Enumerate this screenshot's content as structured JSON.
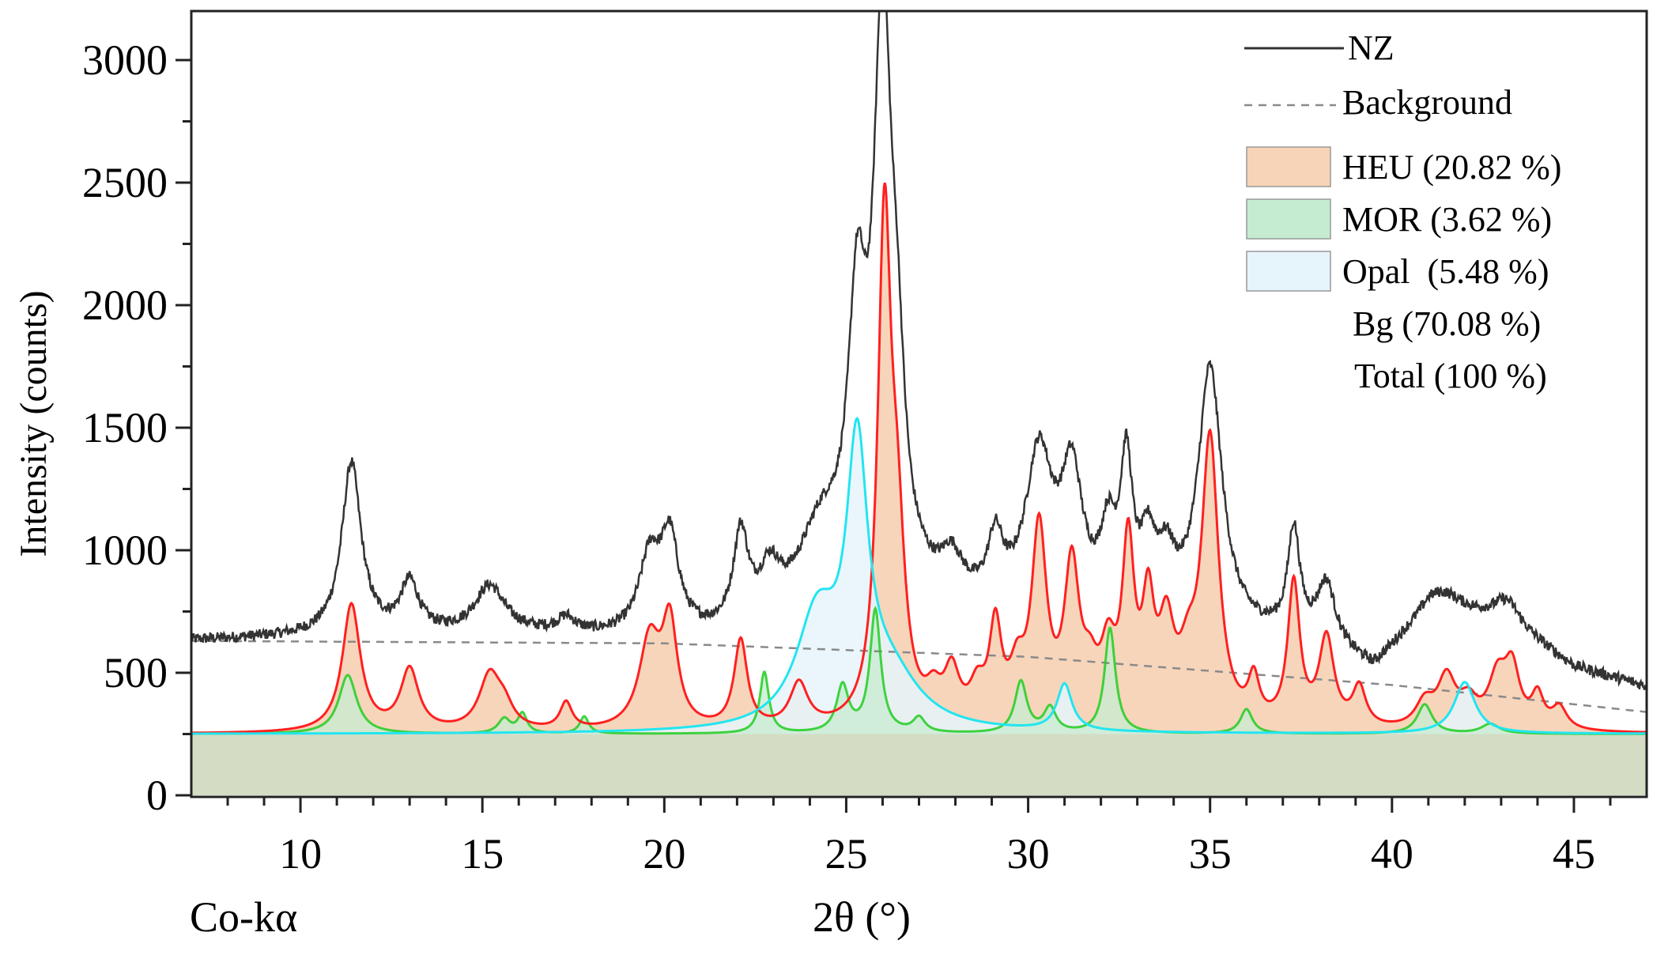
{
  "chart_data": {
    "type": "line",
    "xlabel": "2θ (°)",
    "ylabel": "Intensity (counts)",
    "radiation_label": "Co-kα",
    "xlim": [
      7,
      47
    ],
    "ylim": [
      0,
      3200
    ],
    "x_ticks": [
      10,
      15,
      20,
      25,
      30,
      35,
      40,
      45
    ],
    "x_tick_labels": [
      "10",
      "15",
      "20",
      "25",
      "30",
      "35",
      "40",
      "45"
    ],
    "y_ticks": [
      0,
      500,
      1000,
      1500,
      2000,
      2500,
      3000
    ],
    "y_tick_labels": [
      "0",
      "500",
      "1000",
      "1500",
      "2000",
      "2500",
      "3000"
    ],
    "grid": false,
    "legend_position": "top-right",
    "colors": {
      "observed": "#333333",
      "background": "#8a8a8a",
      "heu_line": "#ff2020",
      "heu_fill": "#f7d3b7",
      "mor_line": "#22cc22",
      "mor_fill": "#c5ecd0",
      "opal_line": "#22e5f0",
      "opal_fill": "#e6f4fb",
      "bg_fill": "#d4dcc4"
    },
    "legend": [
      {
        "label": "NZ",
        "kind": "solid-line"
      },
      {
        "label": "Background",
        "kind": "dashed-line"
      },
      {
        "label": "HEU (20.82 %)",
        "kind": "swatch-heu"
      },
      {
        "label": "MOR (3.62 %)",
        "kind": "swatch-mor"
      },
      {
        "label": "Opal  (5.48 %)",
        "kind": "swatch-opal"
      },
      {
        "label": "Bg (70.08 %)",
        "kind": "text"
      },
      {
        "label": "Total (100 %)",
        "kind": "text"
      }
    ],
    "phase_baseline": 250,
    "background_curve": {
      "x": [
        7,
        20,
        30,
        40,
        47
      ],
      "y": [
        630,
        620,
        565,
        450,
        340
      ]
    },
    "series": [
      {
        "name": "NZ",
        "baseline": [
          [
            7,
            630
          ],
          [
            12,
            650
          ],
          [
            16,
            650
          ],
          [
            19,
            630
          ],
          [
            22,
            620
          ],
          [
            24,
            660
          ],
          [
            27,
            760
          ],
          [
            29,
            720
          ],
          [
            31,
            720
          ],
          [
            33,
            700
          ],
          [
            36,
            640
          ],
          [
            38,
            610
          ],
          [
            39.5,
            510
          ],
          [
            41,
            740
          ],
          [
            43,
            720
          ],
          [
            45,
            520
          ],
          [
            47,
            440
          ]
        ],
        "peaks": [
          [
            11.4,
            700,
            0.32
          ],
          [
            13.0,
            200,
            0.3
          ],
          [
            15.2,
            190,
            0.5
          ],
          [
            17.3,
            60,
            0.3
          ],
          [
            19.6,
            300,
            0.35
          ],
          [
            20.15,
            370,
            0.3
          ],
          [
            22.1,
            380,
            0.25
          ],
          [
            22.9,
            190,
            0.35
          ],
          [
            24.3,
            350,
            0.8
          ],
          [
            25.3,
            1050,
            0.3
          ],
          [
            26.0,
            2260,
            0.3
          ],
          [
            26.4,
            600,
            0.25
          ],
          [
            27.9,
            150,
            0.35
          ],
          [
            29.1,
            250,
            0.25
          ],
          [
            30.3,
            620,
            0.45
          ],
          [
            31.2,
            520,
            0.35
          ],
          [
            32.2,
            280,
            0.25
          ],
          [
            32.7,
            570,
            0.2
          ],
          [
            33.3,
            250,
            0.25
          ],
          [
            33.8,
            200,
            0.3
          ],
          [
            35.0,
            1050,
            0.4
          ],
          [
            37.3,
            430,
            0.2
          ],
          [
            38.2,
            240,
            0.3
          ],
          [
            41.4,
            80,
            0.6
          ],
          [
            43.2,
            80,
            0.4
          ]
        ]
      },
      {
        "name": "HEU",
        "peaks": [
          [
            11.4,
            520,
            0.3
          ],
          [
            13.0,
            250,
            0.3
          ],
          [
            15.2,
            220,
            0.35
          ],
          [
            15.6,
            80,
            0.3
          ],
          [
            17.3,
            110,
            0.2
          ],
          [
            19.6,
            360,
            0.35
          ],
          [
            20.15,
            410,
            0.25
          ],
          [
            22.1,
            360,
            0.22
          ],
          [
            23.7,
            180,
            0.3
          ],
          [
            26.05,
            2000,
            0.22
          ],
          [
            26.4,
            650,
            0.25
          ],
          [
            27.4,
            100,
            0.25
          ],
          [
            27.9,
            200,
            0.25
          ],
          [
            28.6,
            130,
            0.25
          ],
          [
            29.1,
            380,
            0.2
          ],
          [
            29.7,
            180,
            0.25
          ],
          [
            30.3,
            780,
            0.25
          ],
          [
            31.2,
            620,
            0.25
          ],
          [
            31.7,
            150,
            0.25
          ],
          [
            32.2,
            260,
            0.25
          ],
          [
            32.75,
            700,
            0.2
          ],
          [
            33.3,
            440,
            0.2
          ],
          [
            33.8,
            350,
            0.25
          ],
          [
            34.4,
            200,
            0.3
          ],
          [
            35.0,
            1150,
            0.28
          ],
          [
            36.2,
            170,
            0.18
          ],
          [
            37.3,
            580,
            0.2
          ],
          [
            38.2,
            360,
            0.25
          ],
          [
            39.1,
            160,
            0.22
          ],
          [
            40.9,
            100,
            0.3
          ],
          [
            41.5,
            200,
            0.3
          ],
          [
            42.1,
            100,
            0.3
          ],
          [
            42.9,
            200,
            0.3
          ],
          [
            43.3,
            230,
            0.25
          ],
          [
            44.0,
            130,
            0.2
          ],
          [
            44.6,
            90,
            0.25
          ]
        ]
      },
      {
        "name": "MOR",
        "peaks": [
          [
            11.3,
            240,
            0.3
          ],
          [
            15.6,
            60,
            0.2
          ],
          [
            16.1,
            80,
            0.15
          ],
          [
            17.8,
            70,
            0.15
          ],
          [
            22.75,
            250,
            0.15
          ],
          [
            24.9,
            190,
            0.2
          ],
          [
            25.8,
            500,
            0.18
          ],
          [
            27.0,
            60,
            0.2
          ],
          [
            29.8,
            210,
            0.2
          ],
          [
            30.6,
            100,
            0.2
          ],
          [
            32.25,
            430,
            0.18
          ],
          [
            36.0,
            100,
            0.2
          ],
          [
            40.9,
            120,
            0.25
          ],
          [
            42.7,
            40,
            0.3
          ]
        ]
      },
      {
        "name": "Opal",
        "peaks": [
          [
            24.2,
            440,
            0.7
          ],
          [
            25.3,
            1050,
            0.35
          ],
          [
            26.2,
            200,
            1.0
          ],
          [
            31.0,
            190,
            0.25
          ],
          [
            42.0,
            210,
            0.35
          ]
        ]
      }
    ]
  }
}
